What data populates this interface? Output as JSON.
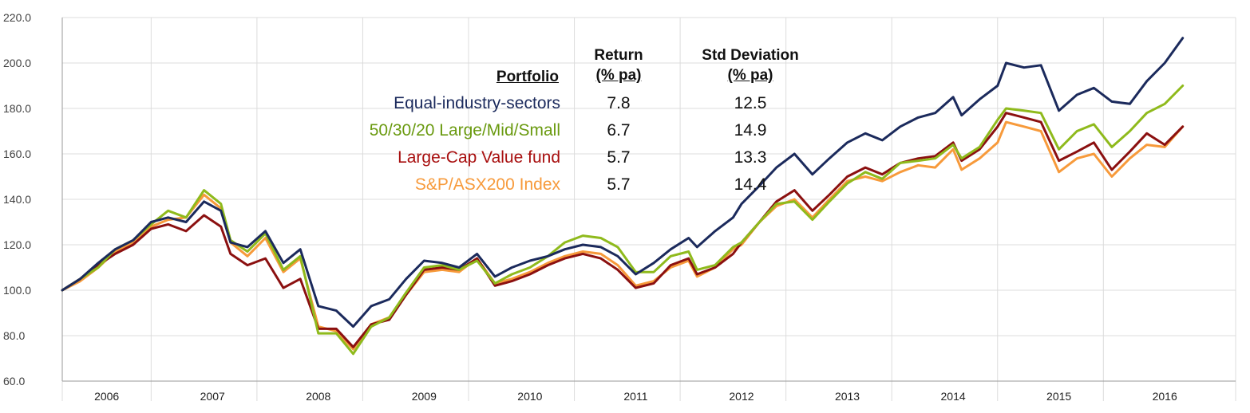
{
  "chart_data": {
    "type": "line",
    "ylim": [
      60,
      220
    ],
    "yticks": [
      "60.0",
      "80.0",
      "100.0",
      "120.0",
      "140.0",
      "160.0",
      "180.0",
      "200.0",
      "220.0"
    ],
    "ytick_values": [
      60,
      80,
      100,
      120,
      140,
      160,
      180,
      200,
      220
    ],
    "xlim": [
      2005.58,
      2016.67
    ],
    "xticks": [
      {
        "label": "2006",
        "x": 2006.0
      },
      {
        "label": "2007",
        "x": 2007.0
      },
      {
        "label": "2008",
        "x": 2008.0
      },
      {
        "label": "2009",
        "x": 2009.0
      },
      {
        "label": "2010",
        "x": 2010.0
      },
      {
        "label": "2011",
        "x": 2011.0
      },
      {
        "label": "2012",
        "x": 2012.0
      },
      {
        "label": "2013",
        "x": 2013.0
      },
      {
        "label": "2014",
        "x": 2014.0
      },
      {
        "label": "2015",
        "x": 2015.0
      },
      {
        "label": "2016",
        "x": 2016.0
      }
    ],
    "xgrid": [
      2005.58,
      2006.42,
      2007.42,
      2008.42,
      2009.42,
      2010.42,
      2011.42,
      2012.42,
      2013.42,
      2014.42,
      2015.42,
      2016.67
    ],
    "grid": true,
    "series": [
      {
        "name": "S&P/ASX200 Index",
        "color": "#f79a3b",
        "points": [
          [
            2005.58,
            100
          ],
          [
            2005.75,
            104
          ],
          [
            2005.92,
            110
          ],
          [
            2006.08,
            117
          ],
          [
            2006.25,
            121
          ],
          [
            2006.42,
            128
          ],
          [
            2006.58,
            131
          ],
          [
            2006.75,
            132
          ],
          [
            2006.92,
            142
          ],
          [
            2007.08,
            136
          ],
          [
            2007.17,
            121
          ],
          [
            2007.33,
            115
          ],
          [
            2007.5,
            123
          ],
          [
            2007.67,
            108
          ],
          [
            2007.83,
            114
          ],
          [
            2008.0,
            84
          ],
          [
            2008.17,
            82
          ],
          [
            2008.33,
            74
          ],
          [
            2008.5,
            85
          ],
          [
            2008.67,
            88
          ],
          [
            2008.83,
            98
          ],
          [
            2009.0,
            108
          ],
          [
            2009.17,
            109
          ],
          [
            2009.33,
            108
          ],
          [
            2009.5,
            114
          ],
          [
            2009.67,
            103
          ],
          [
            2009.83,
            105
          ],
          [
            2010.0,
            108
          ],
          [
            2010.17,
            112
          ],
          [
            2010.33,
            115
          ],
          [
            2010.5,
            117
          ],
          [
            2010.67,
            116
          ],
          [
            2010.83,
            111
          ],
          [
            2011.0,
            102
          ],
          [
            2011.17,
            104
          ],
          [
            2011.33,
            110
          ],
          [
            2011.5,
            113
          ],
          [
            2011.58,
            106
          ],
          [
            2011.75,
            110
          ],
          [
            2011.92,
            118
          ],
          [
            2012.0,
            120
          ],
          [
            2012.17,
            130
          ],
          [
            2012.33,
            137
          ],
          [
            2012.5,
            140
          ],
          [
            2012.67,
            132
          ],
          [
            2012.83,
            140
          ],
          [
            2013.0,
            148
          ],
          [
            2013.17,
            150
          ],
          [
            2013.33,
            148
          ],
          [
            2013.5,
            152
          ],
          [
            2013.67,
            155
          ],
          [
            2013.83,
            154
          ],
          [
            2014.0,
            162
          ],
          [
            2014.08,
            153
          ],
          [
            2014.25,
            158
          ],
          [
            2014.42,
            165
          ],
          [
            2014.5,
            174
          ],
          [
            2014.67,
            172
          ],
          [
            2014.83,
            170
          ],
          [
            2015.0,
            152
          ],
          [
            2015.17,
            158
          ],
          [
            2015.33,
            160
          ],
          [
            2015.5,
            150
          ],
          [
            2015.67,
            158
          ],
          [
            2015.83,
            164
          ],
          [
            2016.0,
            163
          ],
          [
            2016.17,
            172
          ]
        ]
      },
      {
        "name": "Large-Cap Value fund",
        "color": "#8b1010",
        "points": [
          [
            2005.58,
            100
          ],
          [
            2005.75,
            105
          ],
          [
            2005.92,
            111
          ],
          [
            2006.08,
            116
          ],
          [
            2006.25,
            120
          ],
          [
            2006.42,
            127
          ],
          [
            2006.58,
            129
          ],
          [
            2006.75,
            126
          ],
          [
            2006.92,
            133
          ],
          [
            2007.08,
            128
          ],
          [
            2007.17,
            116
          ],
          [
            2007.33,
            111
          ],
          [
            2007.5,
            114
          ],
          [
            2007.67,
            101
          ],
          [
            2007.83,
            105
          ],
          [
            2008.0,
            83
          ],
          [
            2008.17,
            83
          ],
          [
            2008.33,
            75
          ],
          [
            2008.5,
            85
          ],
          [
            2008.67,
            87
          ],
          [
            2008.83,
            98
          ],
          [
            2009.0,
            109
          ],
          [
            2009.17,
            110
          ],
          [
            2009.33,
            109
          ],
          [
            2009.5,
            114
          ],
          [
            2009.67,
            102
          ],
          [
            2009.83,
            104
          ],
          [
            2010.0,
            107
          ],
          [
            2010.17,
            111
          ],
          [
            2010.33,
            114
          ],
          [
            2010.5,
            116
          ],
          [
            2010.67,
            114
          ],
          [
            2010.83,
            109
          ],
          [
            2011.0,
            101
          ],
          [
            2011.17,
            103
          ],
          [
            2011.33,
            111
          ],
          [
            2011.5,
            114
          ],
          [
            2011.58,
            107
          ],
          [
            2011.75,
            110
          ],
          [
            2011.92,
            116
          ],
          [
            2012.0,
            121
          ],
          [
            2012.17,
            130
          ],
          [
            2012.33,
            139
          ],
          [
            2012.5,
            144
          ],
          [
            2012.67,
            135
          ],
          [
            2012.83,
            142
          ],
          [
            2013.0,
            150
          ],
          [
            2013.17,
            154
          ],
          [
            2013.33,
            151
          ],
          [
            2013.5,
            156
          ],
          [
            2013.67,
            158
          ],
          [
            2013.83,
            159
          ],
          [
            2014.0,
            165
          ],
          [
            2014.08,
            157
          ],
          [
            2014.25,
            162
          ],
          [
            2014.42,
            172
          ],
          [
            2014.5,
            178
          ],
          [
            2014.67,
            176
          ],
          [
            2014.83,
            174
          ],
          [
            2015.0,
            157
          ],
          [
            2015.17,
            161
          ],
          [
            2015.33,
            165
          ],
          [
            2015.5,
            153
          ],
          [
            2015.67,
            161
          ],
          [
            2015.83,
            169
          ],
          [
            2016.0,
            164
          ],
          [
            2016.17,
            172
          ]
        ]
      },
      {
        "name": "50/30/20 Large/Mid/Small",
        "color": "#8fba1c",
        "points": [
          [
            2005.58,
            100
          ],
          [
            2005.75,
            105
          ],
          [
            2005.92,
            110
          ],
          [
            2006.08,
            118
          ],
          [
            2006.25,
            122
          ],
          [
            2006.42,
            129
          ],
          [
            2006.58,
            135
          ],
          [
            2006.75,
            132
          ],
          [
            2006.92,
            144
          ],
          [
            2007.08,
            138
          ],
          [
            2007.17,
            122
          ],
          [
            2007.33,
            117
          ],
          [
            2007.5,
            125
          ],
          [
            2007.67,
            109
          ],
          [
            2007.83,
            115
          ],
          [
            2008.0,
            81
          ],
          [
            2008.17,
            81
          ],
          [
            2008.33,
            72
          ],
          [
            2008.5,
            84
          ],
          [
            2008.67,
            88
          ],
          [
            2008.83,
            99
          ],
          [
            2009.0,
            110
          ],
          [
            2009.17,
            111
          ],
          [
            2009.33,
            109
          ],
          [
            2009.5,
            113
          ],
          [
            2009.67,
            103
          ],
          [
            2009.83,
            107
          ],
          [
            2010.0,
            110
          ],
          [
            2010.17,
            115
          ],
          [
            2010.33,
            121
          ],
          [
            2010.5,
            124
          ],
          [
            2010.67,
            123
          ],
          [
            2010.83,
            119
          ],
          [
            2011.0,
            108
          ],
          [
            2011.17,
            108
          ],
          [
            2011.33,
            115
          ],
          [
            2011.5,
            117
          ],
          [
            2011.58,
            109
          ],
          [
            2011.75,
            111
          ],
          [
            2011.92,
            119
          ],
          [
            2012.0,
            121
          ],
          [
            2012.17,
            130
          ],
          [
            2012.33,
            138
          ],
          [
            2012.5,
            139
          ],
          [
            2012.67,
            131
          ],
          [
            2012.83,
            139
          ],
          [
            2013.0,
            147
          ],
          [
            2013.17,
            152
          ],
          [
            2013.33,
            149
          ],
          [
            2013.5,
            156
          ],
          [
            2013.67,
            157
          ],
          [
            2013.83,
            158
          ],
          [
            2014.0,
            164
          ],
          [
            2014.08,
            158
          ],
          [
            2014.25,
            163
          ],
          [
            2014.42,
            175
          ],
          [
            2014.5,
            180
          ],
          [
            2014.67,
            179
          ],
          [
            2014.83,
            178
          ],
          [
            2015.0,
            162
          ],
          [
            2015.17,
            170
          ],
          [
            2015.33,
            173
          ],
          [
            2015.5,
            163
          ],
          [
            2015.67,
            170
          ],
          [
            2015.83,
            178
          ],
          [
            2016.0,
            182
          ],
          [
            2016.17,
            190
          ]
        ]
      },
      {
        "name": "Equal-industry-sectors",
        "color": "#1b2a5c",
        "points": [
          [
            2005.58,
            100
          ],
          [
            2005.75,
            105
          ],
          [
            2005.92,
            112
          ],
          [
            2006.08,
            118
          ],
          [
            2006.25,
            122
          ],
          [
            2006.42,
            130
          ],
          [
            2006.58,
            132
          ],
          [
            2006.75,
            130
          ],
          [
            2006.92,
            139
          ],
          [
            2007.08,
            135
          ],
          [
            2007.17,
            121
          ],
          [
            2007.33,
            119
          ],
          [
            2007.5,
            126
          ],
          [
            2007.67,
            112
          ],
          [
            2007.83,
            118
          ],
          [
            2008.0,
            93
          ],
          [
            2008.17,
            91
          ],
          [
            2008.33,
            84
          ],
          [
            2008.5,
            93
          ],
          [
            2008.67,
            96
          ],
          [
            2008.83,
            105
          ],
          [
            2009.0,
            113
          ],
          [
            2009.17,
            112
          ],
          [
            2009.33,
            110
          ],
          [
            2009.5,
            116
          ],
          [
            2009.67,
            106
          ],
          [
            2009.83,
            110
          ],
          [
            2010.0,
            113
          ],
          [
            2010.17,
            115
          ],
          [
            2010.33,
            118
          ],
          [
            2010.5,
            120
          ],
          [
            2010.67,
            119
          ],
          [
            2010.83,
            115
          ],
          [
            2011.0,
            107
          ],
          [
            2011.17,
            112
          ],
          [
            2011.33,
            118
          ],
          [
            2011.5,
            123
          ],
          [
            2011.58,
            119
          ],
          [
            2011.75,
            126
          ],
          [
            2011.92,
            132
          ],
          [
            2012.0,
            138
          ],
          [
            2012.17,
            146
          ],
          [
            2012.33,
            154
          ],
          [
            2012.5,
            160
          ],
          [
            2012.67,
            151
          ],
          [
            2012.83,
            158
          ],
          [
            2013.0,
            165
          ],
          [
            2013.17,
            169
          ],
          [
            2013.33,
            166
          ],
          [
            2013.5,
            172
          ],
          [
            2013.67,
            176
          ],
          [
            2013.83,
            178
          ],
          [
            2014.0,
            185
          ],
          [
            2014.08,
            177
          ],
          [
            2014.25,
            184
          ],
          [
            2014.42,
            190
          ],
          [
            2014.5,
            200
          ],
          [
            2014.67,
            198
          ],
          [
            2014.83,
            199
          ],
          [
            2015.0,
            179
          ],
          [
            2015.17,
            186
          ],
          [
            2015.33,
            189
          ],
          [
            2015.5,
            183
          ],
          [
            2015.67,
            182
          ],
          [
            2015.83,
            192
          ],
          [
            2016.0,
            200
          ],
          [
            2016.17,
            211
          ]
        ]
      }
    ]
  },
  "legend_table": {
    "header_portfolio": "Portfolio",
    "header_return_1": "Return",
    "header_return_2": "(% pa)",
    "header_sd_1": "Std Deviation",
    "header_sd_2": "(% pa)",
    "rows": [
      {
        "name": "Equal-industry-sectors",
        "ret": "7.8",
        "sd": "12.5",
        "color": "#1b2a5c"
      },
      {
        "name": "50/30/20 Large/Mid/Small",
        "ret": "6.7",
        "sd": "14.9",
        "color": "#6a9a10"
      },
      {
        "name": "Large-Cap Value fund",
        "ret": "5.7",
        "sd": "13.3",
        "color": "#a80f0f"
      },
      {
        "name": "S&P/ASX200 Index",
        "ret": "5.7",
        "sd": "14.4",
        "color": "#f79a3b"
      }
    ]
  }
}
